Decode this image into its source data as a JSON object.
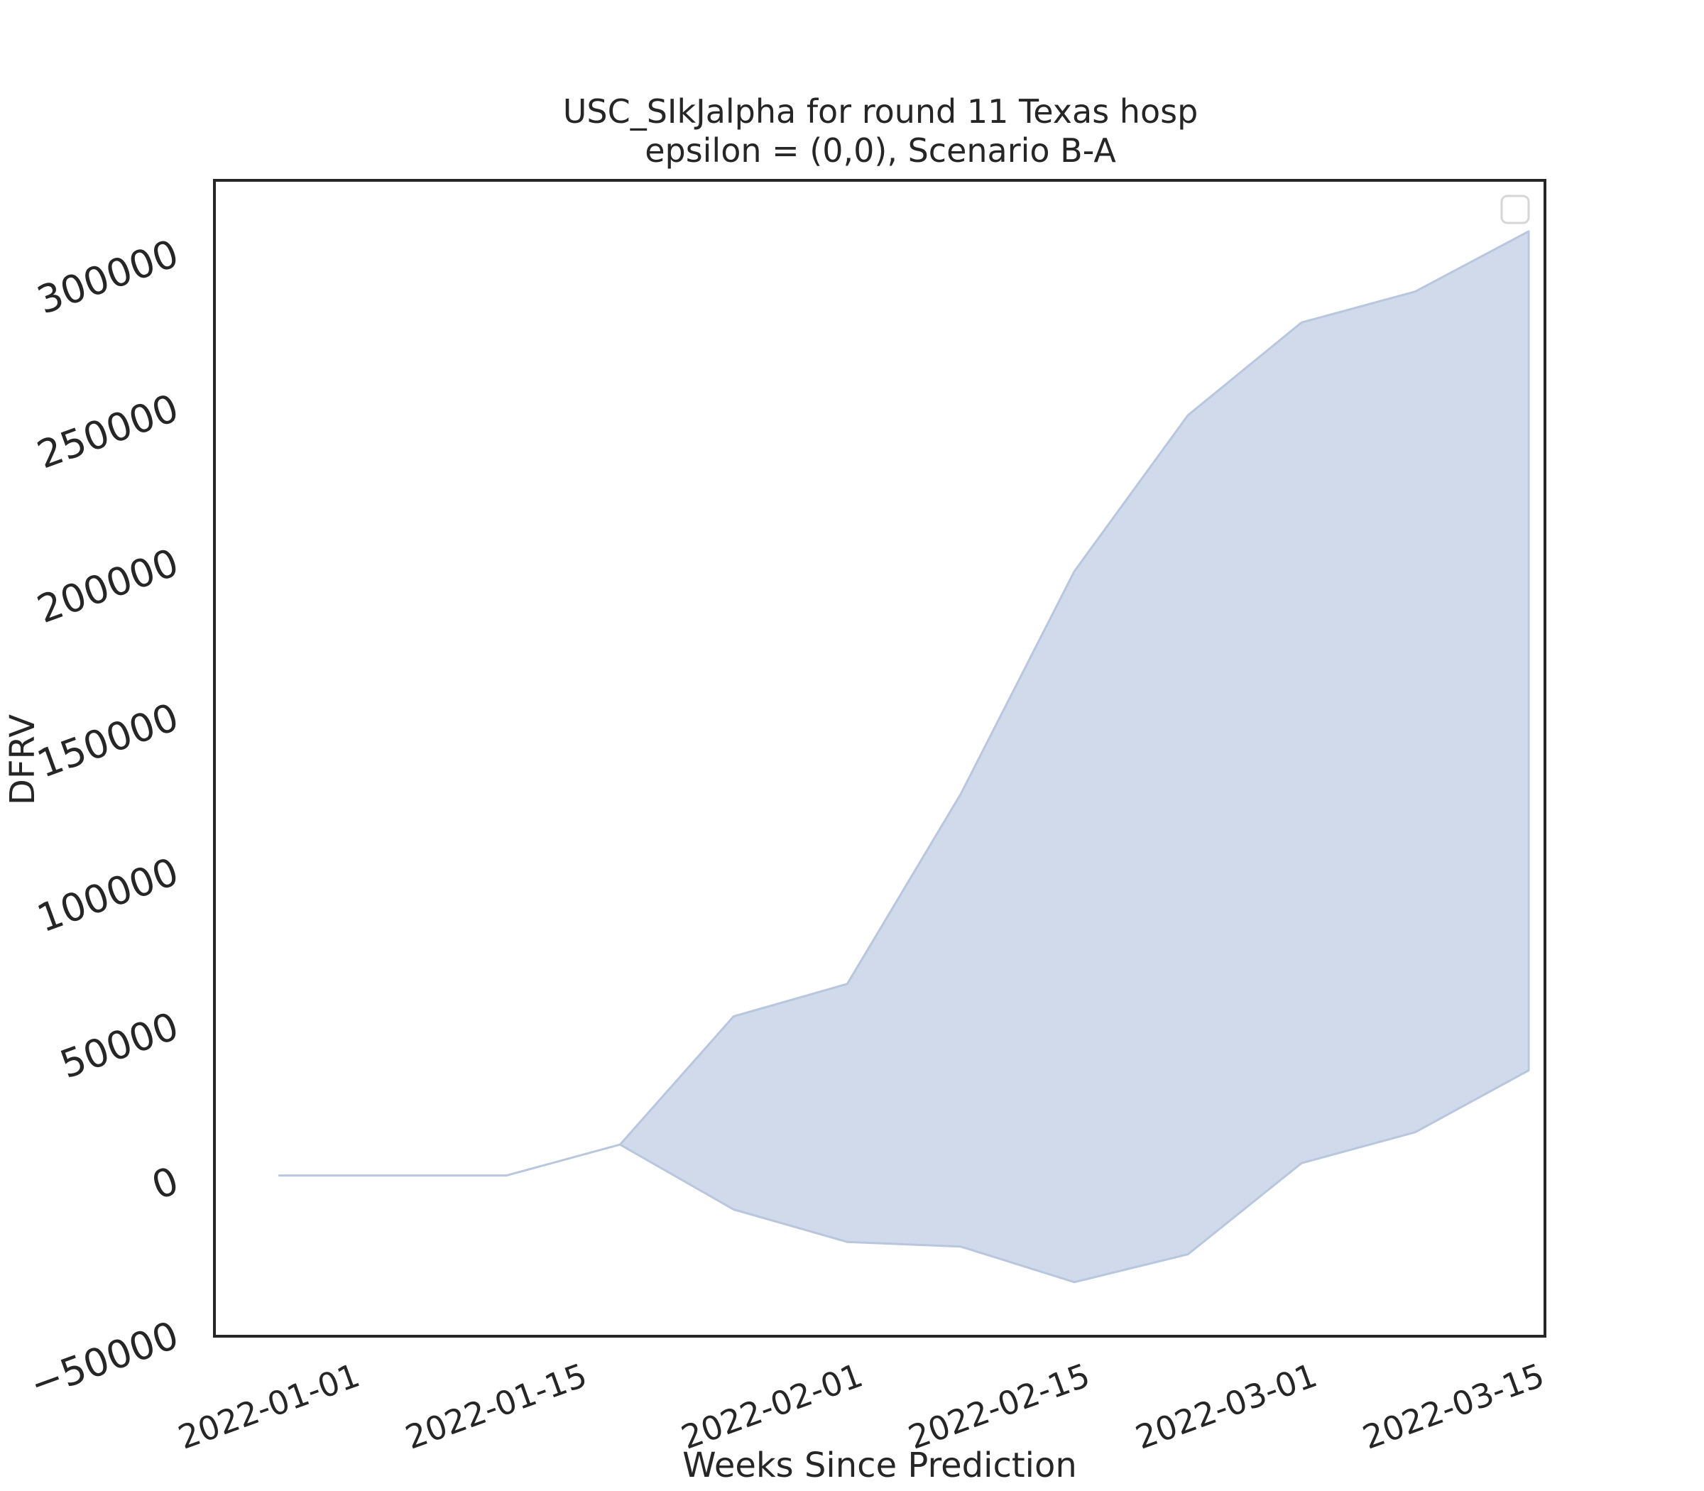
{
  "chart_data": {
    "type": "area",
    "title_lines": [
      "USC_SIkJalpha for round 11 Texas hosp",
      "epsilon = (0,0), Scenario B-A"
    ],
    "xlabel": "Weeks Since Prediction",
    "ylabel": "DFRV",
    "x_tick_labels": [
      "2022-01-01",
      "2022-01-15",
      "2022-02-01",
      "2022-02-15",
      "2022-03-01",
      "2022-03-15"
    ],
    "y_tick_values": [
      -50000,
      0,
      50000,
      100000,
      150000,
      200000,
      250000,
      300000
    ],
    "y_tick_labels": [
      "−50000",
      "0",
      "50000",
      "100000",
      "150000",
      "200000",
      "250000",
      "300000"
    ],
    "xlim": [
      "2021-12-24",
      "2022-03-16"
    ],
    "ylim": [
      -51000,
      323000
    ],
    "grid": false,
    "legend": "top-right, empty",
    "series": [
      {
        "dates": [
          "2021-12-28",
          "2022-01-04",
          "2022-01-11",
          "2022-01-18",
          "2022-01-25",
          "2022-02-01",
          "2022-02-08",
          "2022-02-15",
          "2022-02-22",
          "2022-03-01",
          "2022-03-08",
          "2022-03-15"
        ],
        "lower": [
          1000,
          1000,
          1000,
          11000,
          -10000,
          -20500,
          -22000,
          -33500,
          -24500,
          5000,
          15000,
          35000
        ],
        "upper": [
          1000,
          1000,
          1000,
          11000,
          52500,
          63000,
          124500,
          196500,
          247000,
          277000,
          287000,
          306500
        ],
        "fill_color": "#d0daeb",
        "edge_color": "#b8c6de"
      }
    ]
  }
}
